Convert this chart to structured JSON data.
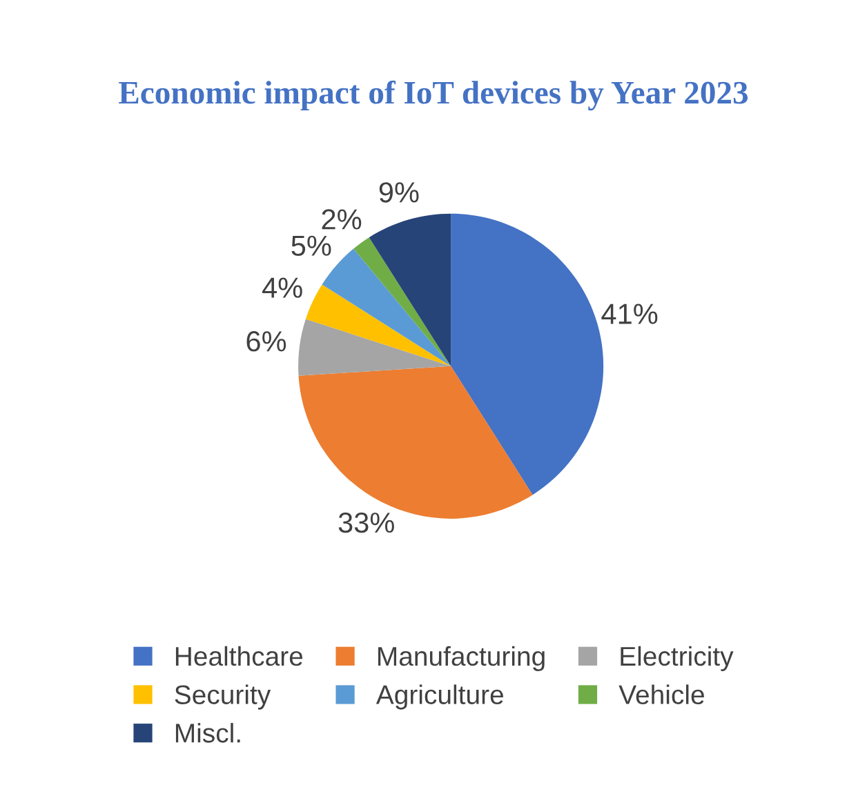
{
  "chart_data": {
    "type": "pie",
    "title": "Economic impact of IoT devices by Year 2023",
    "categories": [
      "Healthcare",
      "Manufacturing",
      "Electricity",
      "Security",
      "Agriculture",
      "Vehicle",
      "Miscl."
    ],
    "values": [
      41,
      33,
      6,
      4,
      5,
      2,
      9
    ],
    "colors": [
      "#4472c4",
      "#ed7d31",
      "#a5a5a5",
      "#ffc000",
      "#5b9bd5",
      "#70ad47",
      "#264478"
    ],
    "value_labels": [
      "41%",
      "33%",
      "6%",
      "4%",
      "5%",
      "2%",
      "9%"
    ],
    "legend": "bottom"
  }
}
